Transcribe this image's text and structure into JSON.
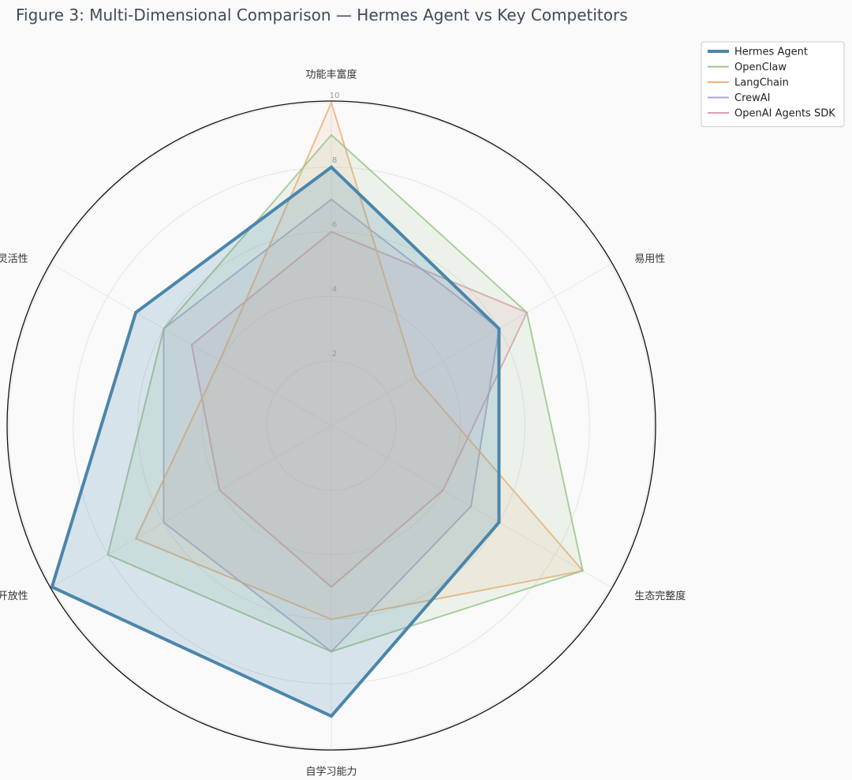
{
  "chart_data": {
    "type": "radar",
    "title": "Figure 3: Multi-Dimensional Comparison — Hermes Agent vs Key Competitors",
    "axes": [
      "功能丰富度",
      "易用性",
      "生态完整度",
      "自学习能力",
      "开放性",
      "部署灵活性"
    ],
    "rlim": [
      0,
      10
    ],
    "rticks": [
      2,
      4,
      6,
      8,
      10
    ],
    "grid": true,
    "legend": "top-right",
    "series": [
      {
        "name": "Hermes Agent",
        "values": [
          8,
          6,
          6,
          9,
          10,
          7
        ],
        "color": "#4a86ac"
      },
      {
        "name": "OpenClaw",
        "values": [
          9,
          7,
          9,
          7,
          8,
          6
        ],
        "color": "#9cc68e"
      },
      {
        "name": "LangChain",
        "values": [
          10,
          3,
          9,
          6,
          7,
          4
        ],
        "color": "#f0b07c"
      },
      {
        "name": "CrewAI",
        "values": [
          7,
          6,
          5,
          7,
          6,
          6
        ],
        "color": "#aea6d0"
      },
      {
        "name": "OpenAI Agents SDK",
        "values": [
          6,
          7,
          4,
          5,
          4,
          5
        ],
        "color": "#e09fb0"
      }
    ]
  }
}
